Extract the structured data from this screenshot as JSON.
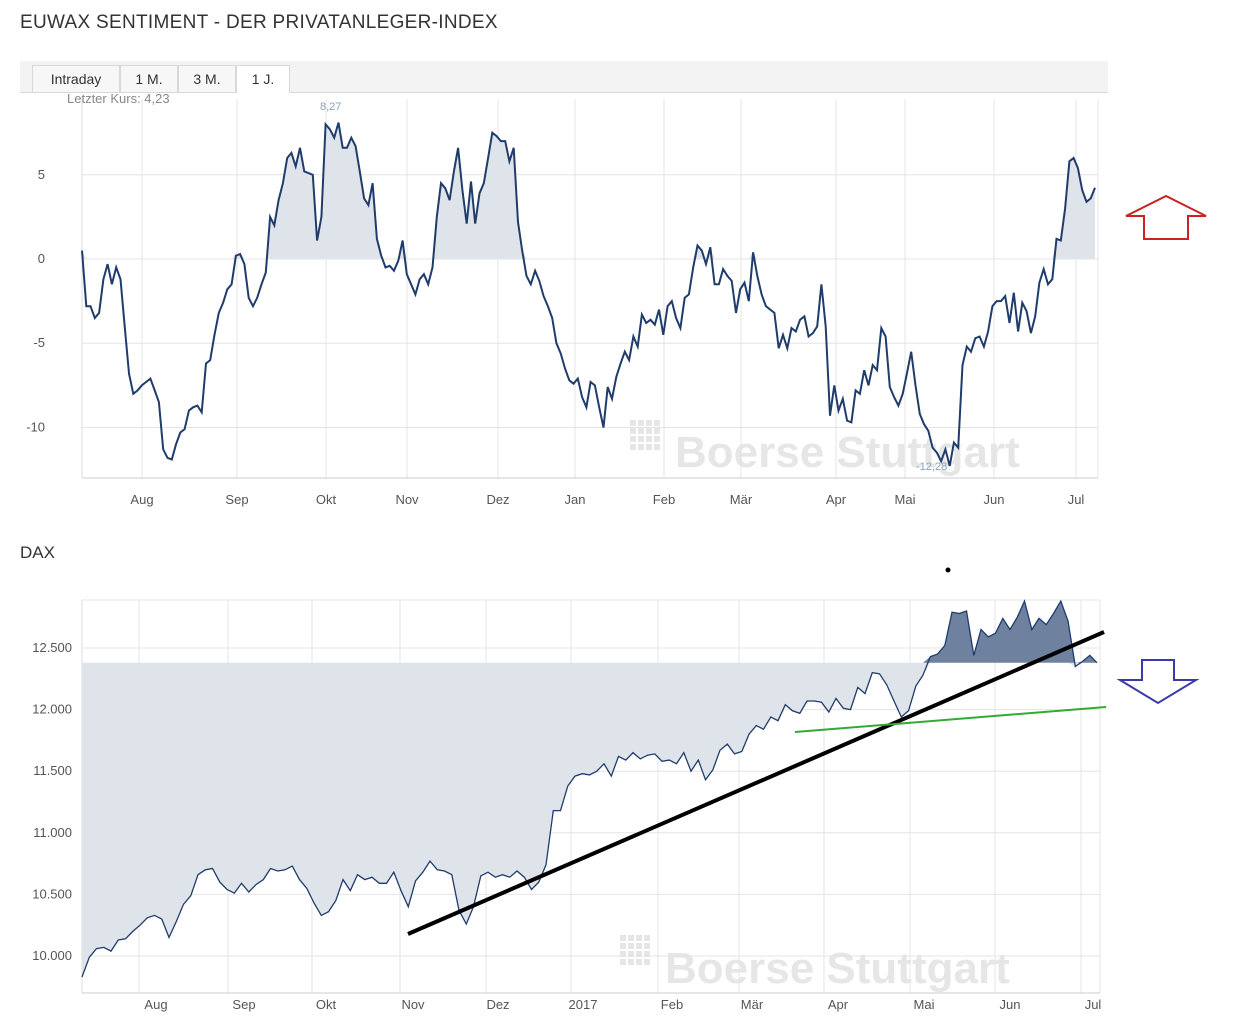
{
  "sentiment": {
    "title": "EUWAX SENTIMENT - DER PRIVATANLEGER-INDEX",
    "tabs": [
      {
        "label": "Intraday",
        "active": false
      },
      {
        "label": "1 M.",
        "active": false
      },
      {
        "label": "3 M.",
        "active": false
      },
      {
        "label": "1 J.",
        "active": true
      }
    ],
    "last_price_label": "Letzter Kurs: 4,23",
    "max_label": "8,27",
    "min_label": "-12,28",
    "watermark": "Boerse Stuttgart",
    "arrow": {
      "direction": "up",
      "color": "#cc2222"
    }
  },
  "dax": {
    "title": "DAX",
    "watermark": "Boerse Stuttgart",
    "arrow": {
      "direction": "down",
      "color": "#3a3aaa"
    },
    "trendlines": [
      {
        "name": "long-term-support",
        "color": "#000000"
      },
      {
        "name": "short-term-support",
        "color": "#33aa33"
      }
    ]
  },
  "chart_data": [
    {
      "type": "area",
      "title": "EUWAX SENTIMENT - DER PRIVATANLEGER-INDEX",
      "ylim": [
        -13,
        9.5
      ],
      "yticks": [
        5,
        0,
        -5,
        -10
      ],
      "ytick_labels": [
        "5",
        "0",
        "-5",
        "-10"
      ],
      "xticks": [
        "Aug",
        "Sep",
        "Okt",
        "Nov",
        "Dez",
        "Jan",
        "Feb",
        "Mär",
        "Apr",
        "Mai",
        "Jun",
        "Jul"
      ],
      "grid": true,
      "baseline": 0,
      "values": [
        0.5,
        -2.8,
        -2.8,
        -3.5,
        -3.2,
        -1.2,
        -0.3,
        -1.5,
        -0.5,
        -1.2,
        -4,
        -6.8,
        -8,
        -7.8,
        -7.5,
        -7.3,
        -7.1,
        -7.8,
        -8.5,
        -11.3,
        -11.8,
        -11.9,
        -11,
        -10.3,
        -10.1,
        -9,
        -8.8,
        -8.7,
        -9.1,
        -6.2,
        -6,
        -4.5,
        -3.2,
        -2.6,
        -1.8,
        -1.5,
        0.2,
        0.3,
        -0.3,
        -2.3,
        -2.8,
        -2.3,
        -1.5,
        -0.8,
        2.5,
        2,
        3.5,
        4.5,
        6,
        6.3,
        5.5,
        6.6,
        5.2,
        5.1,
        5,
        1.1,
        2.5,
        8,
        7.7,
        7.2,
        8.1,
        6.6,
        6.6,
        7.2,
        6.7,
        5.2,
        3.6,
        3.2,
        4.5,
        1.2,
        0.2,
        -0.5,
        -0.4,
        -0.7,
        -0.1,
        1.1,
        -0.9,
        -1.5,
        -2.1,
        -1.2,
        -0.9,
        -1.5,
        -0.5,
        2.5,
        4.5,
        4.2,
        3.5,
        5.2,
        6.6,
        4.1,
        2.1,
        4.6,
        2.1,
        3.9,
        4.5,
        6,
        7.5,
        7.3,
        7,
        7,
        5.8,
        6.6,
        2.2,
        0.5,
        -1,
        -1.5,
        -0.7,
        -1.3,
        -2.2,
        -2.8,
        -3.5,
        -5,
        -5.6,
        -6.5,
        -7.2,
        -7.4,
        -7.1,
        -8.2,
        -8.8,
        -7.3,
        -7.5,
        -8.8,
        -10,
        -7.6,
        -8.3,
        -7,
        -6.2,
        -5.5,
        -6,
        -4.6,
        -5.2,
        -3.3,
        -3.8,
        -3.6,
        -3.9,
        -3,
        -4.5,
        -2.8,
        -2.5,
        -3.5,
        -4.1,
        -2.3,
        -2.1,
        -0.5,
        0.8,
        0.5,
        -0.3,
        0.7,
        -1.5,
        -1.5,
        -0.6,
        -1,
        -1.3,
        -3.2,
        -1.8,
        -1.4,
        -2.5,
        0.4,
        -1,
        -2.1,
        -2.8,
        -3,
        -3.2,
        -5.3,
        -4.5,
        -5.3,
        -4.1,
        -4.3,
        -3.6,
        -3.4,
        -4.6,
        -4.4,
        -4,
        -1.5,
        -4,
        -9.3,
        -7.5,
        -9,
        -8.3,
        -9.6,
        -9.7,
        -7.8,
        -8,
        -6.6,
        -7.5,
        -6.3,
        -6.6,
        -4.1,
        -4.6,
        -7.6,
        -8.2,
        -8.7,
        -8,
        -6.8,
        -5.5,
        -7.5,
        -9.2,
        -9.8,
        -10.2,
        -11.2,
        -11.5,
        -12,
        -11.3,
        -12.28,
        -10.9,
        -11.2,
        -6.3,
        -5.2,
        -5.5,
        -4.7,
        -4.6,
        -5.2,
        -4.3,
        -2.8,
        -2.5,
        -2.5,
        -2.2,
        -3.8,
        -2,
        -4.3,
        -2.6,
        -3.1,
        -4.4,
        -3.4,
        -1.4,
        -0.6,
        -1.5,
        -1.2,
        1.2,
        1.1,
        3,
        5.8,
        6,
        5.4,
        4.1,
        3.4,
        3.6,
        4.23
      ]
    },
    {
      "type": "area",
      "title": "DAX",
      "ylim": [
        9700,
        12800
      ],
      "yticks": [
        12500,
        12000,
        11500,
        11000,
        10500,
        10000
      ],
      "ytick_labels": [
        "12.500",
        "12.000",
        "11.500",
        "11.000",
        "10.500",
        "10.000"
      ],
      "xticks": [
        "Aug",
        "Sep",
        "Okt",
        "Nov",
        "Dez",
        "2017",
        "Feb",
        "Mär",
        "Apr",
        "Mai",
        "Jun",
        "Jul"
      ],
      "grid": true,
      "baseline": 12380,
      "values": [
        9830,
        9990,
        10060,
        10070,
        10040,
        10130,
        10140,
        10200,
        10250,
        10310,
        10330,
        10300,
        10150,
        10280,
        10420,
        10490,
        10660,
        10700,
        10710,
        10600,
        10540,
        10510,
        10590,
        10520,
        10580,
        10620,
        10710,
        10690,
        10700,
        10730,
        10620,
        10550,
        10430,
        10330,
        10360,
        10450,
        10620,
        10530,
        10660,
        10620,
        10640,
        10590,
        10590,
        10680,
        10530,
        10400,
        10610,
        10680,
        10770,
        10700,
        10690,
        10660,
        10370,
        10260,
        10400,
        10650,
        10680,
        10640,
        10660,
        10640,
        10690,
        10640,
        10540,
        10600,
        10740,
        11180,
        11180,
        11380,
        11460,
        11480,
        11470,
        11500,
        11560,
        11460,
        11620,
        11590,
        11650,
        11600,
        11630,
        11640,
        11580,
        11590,
        11560,
        11650,
        11500,
        11590,
        11430,
        11510,
        11670,
        11720,
        11640,
        11660,
        11800,
        11870,
        11840,
        11940,
        11910,
        12040,
        11990,
        11970,
        12070,
        12070,
        12060,
        11980,
        12090,
        12010,
        12000,
        12180,
        12130,
        12300,
        12290,
        12200,
        12070,
        11940,
        11990,
        12190,
        12280,
        12430,
        12450,
        12520,
        12790,
        12780,
        12800,
        12440,
        12650,
        12590,
        12620,
        12740,
        12650,
        12750,
        12880,
        12650,
        12740,
        12690,
        12780,
        12880,
        12720,
        12350,
        12390,
        12440,
        12380
      ]
    }
  ]
}
